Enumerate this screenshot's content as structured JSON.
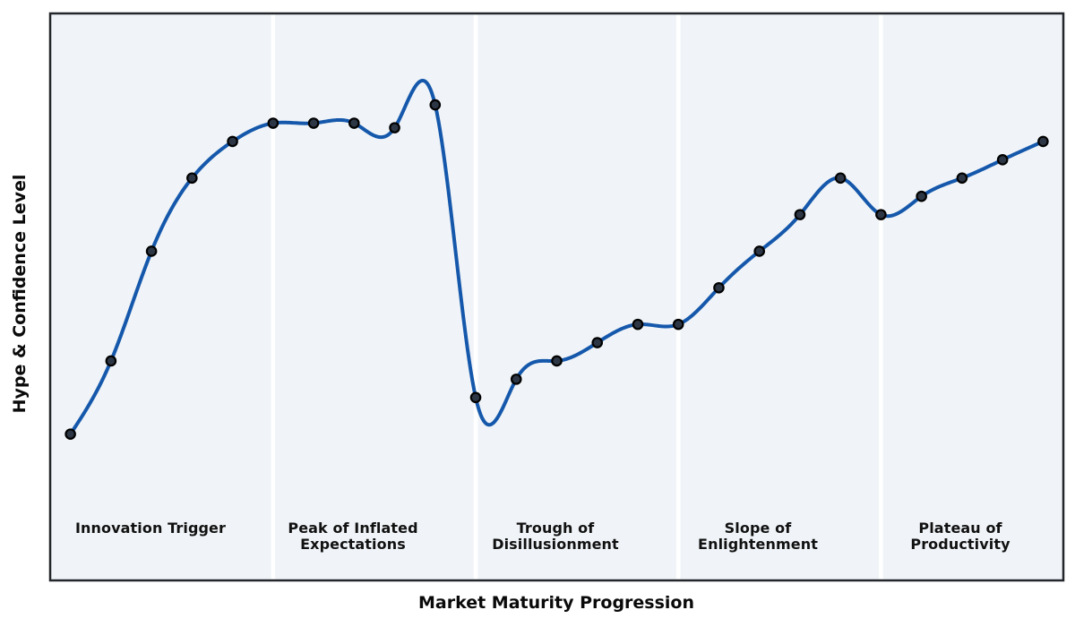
{
  "axes": {
    "x_label": "Market Maturity Progression",
    "y_label": "Hype & Confidence Level"
  },
  "phases": [
    {
      "label": "Innovation Trigger"
    },
    {
      "label": "Peak of Inflated\nExpectations"
    },
    {
      "label": "Trough of\nDisillusionment"
    },
    {
      "label": "Slope of\nEnlightenment"
    },
    {
      "label": "Plateau of\nProductivity"
    }
  ],
  "colors": {
    "line": "#1558ab",
    "marker_fill": "#2d3644",
    "marker_edge": "#000000",
    "plot_bg": "#f0f4f8",
    "page_bg": "#ffffff",
    "divider": "#ffffff",
    "spine": "#23262b",
    "text": "#111111"
  },
  "chart_data": {
    "type": "line",
    "title": "",
    "series_name": "Hype & Confidence",
    "x": [
      0,
      1,
      2,
      3,
      4,
      5,
      6,
      7,
      8,
      9,
      10,
      11,
      12,
      13,
      14,
      15,
      16,
      17,
      18,
      19,
      20,
      21,
      22,
      23,
      24
    ],
    "values": [
      10,
      26,
      50,
      66,
      74,
      78,
      78,
      78,
      77,
      82,
      18,
      22,
      26,
      30,
      34,
      34,
      42,
      50,
      58,
      66,
      58,
      62,
      66,
      70,
      74
    ],
    "xlabel": "Market Maturity Progression",
    "ylabel": "Hype & Confidence Level",
    "xlim": [
      -0.5,
      24.5
    ],
    "ylim": [
      -22,
      102
    ],
    "x_ticks": "none",
    "y_ticks": "none",
    "legend": "none",
    "smoothing": "natural-cubic-spline",
    "markers": true,
    "grid": "vertical white phase dividers only",
    "phase_boundaries_x": [
      5,
      10,
      15,
      20
    ],
    "phase_label_x": [
      2,
      7,
      12,
      17,
      22
    ],
    "phase_labels": [
      "Innovation Trigger",
      "Peak of Inflated\nExpectations",
      "Trough of\nDisillusionment",
      "Slope of\nEnlightenment",
      "Plateau of\nProductivity"
    ]
  }
}
